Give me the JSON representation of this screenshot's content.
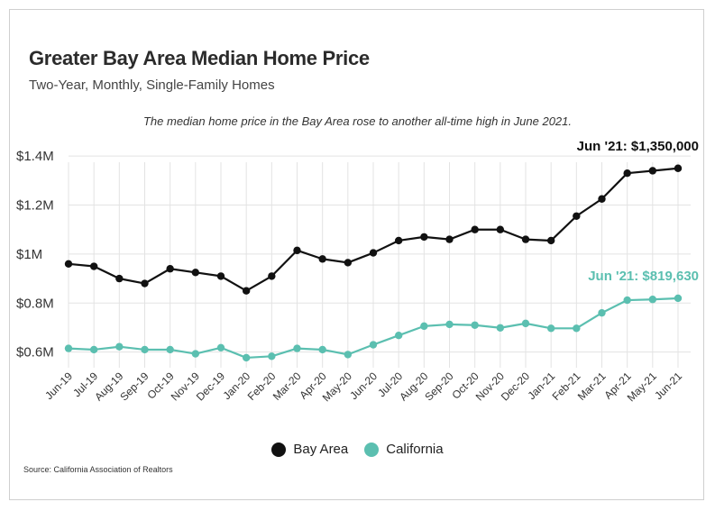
{
  "title": "Greater Bay Area Median Home Price",
  "subtitle": "Two-Year, Monthly, Single-Family Homes",
  "annotation": "The median home price in the Bay Area rose to another all-time high in June 2021.",
  "source": "Source:  California Association of Realtors",
  "colors": {
    "bay_area": "#111111",
    "california": "#5bbfb0",
    "grid": "#e3e3e3",
    "axis_text": "#333333"
  },
  "chart_data": {
    "type": "line",
    "x": [
      "Jun-19",
      "Jul-19",
      "Aug-19",
      "Sep-19",
      "Oct-19",
      "Nov-19",
      "Dec-19",
      "Jan-20",
      "Feb-20",
      "Mar-20",
      "Apr-20",
      "May-20",
      "Jun-20",
      "Jul-20",
      "Aug-20",
      "Sep-20",
      "Oct-20",
      "Nov-20",
      "Dec-20",
      "Jan-21",
      "Feb-21",
      "Mar-21",
      "Apr-21",
      "May-21",
      "Jun-21"
    ],
    "series": [
      {
        "name": "Bay Area",
        "values": [
          960000,
          950000,
          900000,
          880000,
          940000,
          925000,
          910000,
          850000,
          910000,
          1015000,
          980000,
          965000,
          1005000,
          1055000,
          1070000,
          1060000,
          1100000,
          1100000,
          1060000,
          1055000,
          1155000,
          1225000,
          1330000,
          1340000,
          1350000
        ]
      },
      {
        "name": "California",
        "values": [
          615000,
          610000,
          622000,
          610000,
          610000,
          593000,
          618000,
          577000,
          583000,
          615000,
          610000,
          590000,
          630000,
          668000,
          706000,
          713000,
          710000,
          699000,
          717000,
          697000,
          697000,
          760000,
          812000,
          815000,
          819630
        ]
      }
    ],
    "yticks": [
      {
        "value": 600000,
        "label": "$0.6M"
      },
      {
        "value": 800000,
        "label": "$0.8M"
      },
      {
        "value": 1000000,
        "label": "$1M"
      },
      {
        "value": 1200000,
        "label": "$1.2M"
      },
      {
        "value": 1400000,
        "label": "$1.4M"
      }
    ],
    "ylim": [
      540000,
      1430000
    ],
    "grid": true,
    "legend_position": "bottom",
    "end_labels": [
      {
        "series": 0,
        "text": "Jun '21: $1,350,000"
      },
      {
        "series": 1,
        "text": "Jun '21: $819,630"
      }
    ]
  }
}
